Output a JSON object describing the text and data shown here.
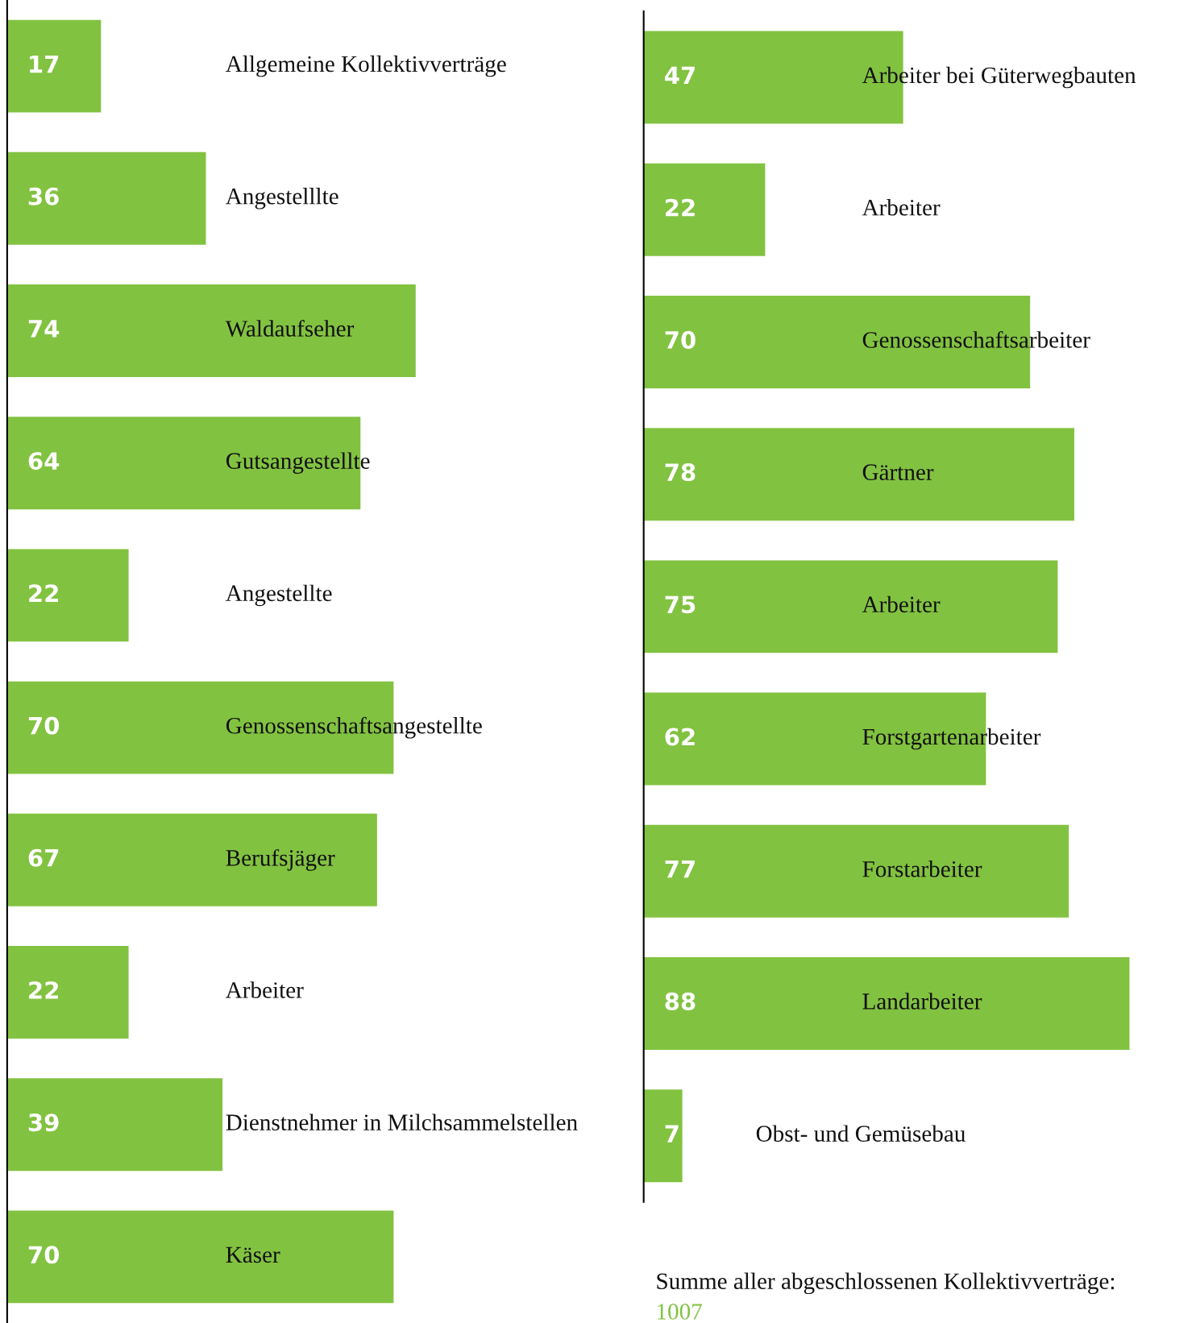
{
  "chart_data": [
    {
      "type": "bar",
      "orientation": "horizontal",
      "data_labels": true,
      "categories": [
        "Allgemeine Kollektivverträge",
        "Angestelllte",
        "Waldaufseher",
        "Gutsangestellte",
        "Angestellte",
        "Genossenschaftsangestellte",
        "Berufsjäger",
        "Arbeiter",
        "Dienstnehmer in Milchsammelstellen",
        "Käser"
      ],
      "color": "#82c241",
      "values": [
        17,
        36,
        74,
        64,
        22,
        70,
        67,
        22,
        39,
        70
      ]
    },
    {
      "type": "bar",
      "orientation": "horizontal",
      "data_labels": true,
      "categories": [
        "Arbeiter bei Güterwegbauten",
        "Arbeiter",
        "Genossenschaftsarbeiter",
        "Gärtner",
        "Arbeiter",
        "Forstgartenarbeiter",
        "Forstarbeiter",
        "Landarbeiter",
        "Obst- und Gemüsebau"
      ],
      "color": "#82c241",
      "values": [
        47,
        22,
        70,
        78,
        75,
        62,
        77,
        88,
        7
      ],
      "annotations": [
        "Summe aller abgeschlossenen Kollektivverträge:",
        "1007"
      ]
    }
  ]
}
